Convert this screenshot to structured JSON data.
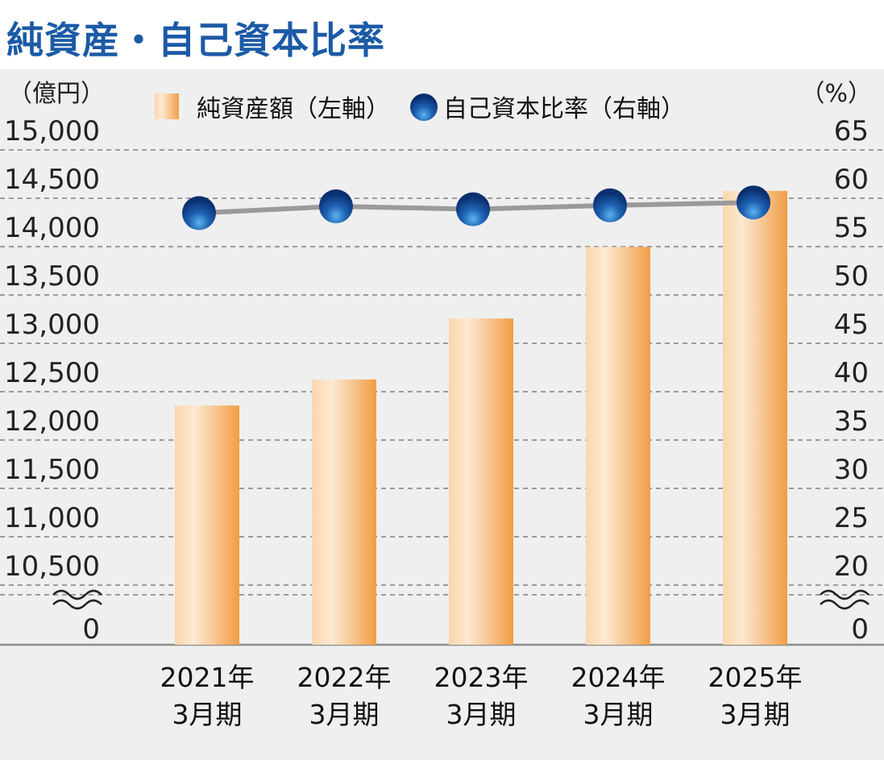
{
  "title": "純資産・自己資本比率",
  "chart_data": {
    "type": "bar",
    "title": "純資産・自己資本比率",
    "categories": [
      [
        "2021年",
        "3月期"
      ],
      [
        "2022年",
        "3月期"
      ],
      [
        "2023年",
        "3月期"
      ],
      [
        "2024年",
        "3月期"
      ],
      [
        "2025年",
        "3月期"
      ]
    ],
    "left_axis": {
      "unit_label": "（億円）",
      "ticks": [
        "15,000",
        "14,500",
        "14,000",
        "13,500",
        "13,000",
        "12,500",
        "12,000",
        "11,500",
        "11,000",
        "10,500",
        "0"
      ],
      "range": [
        10000,
        15000
      ],
      "axis_break": true
    },
    "right_axis": {
      "unit_label": "（%）",
      "ticks": [
        "65",
        "60",
        "55",
        "50",
        "45",
        "40",
        "35",
        "30",
        "25",
        "20",
        "0"
      ],
      "range": [
        15,
        65
      ],
      "axis_break": true
    },
    "series": [
      {
        "name": "純資産額（左軸）",
        "type": "bar",
        "axis": "left",
        "values": [
          12190,
          12460,
          13090,
          13830,
          14410
        ]
      },
      {
        "name": "自己資本比率（右軸）",
        "type": "line",
        "axis": "right",
        "values": [
          56.8,
          57.5,
          57.2,
          57.6,
          57.9
        ]
      }
    ],
    "grid": true,
    "legend_position": "top"
  },
  "colors": {
    "bar_light": "#fde7cc",
    "bar_dark": "#f19d45",
    "dot_light": "#3f9be0",
    "dot_dark": "#0b2f70",
    "line": "#9a9a9a",
    "title": "#1b5aa6",
    "grid": "#9b9b9b"
  }
}
